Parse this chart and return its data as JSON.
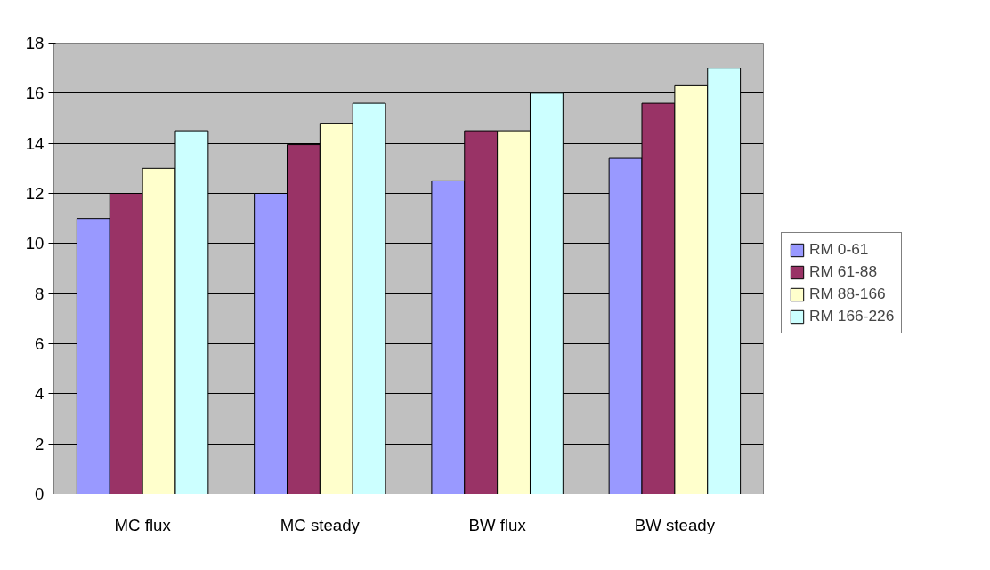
{
  "chart_data": {
    "type": "bar",
    "categories": [
      "MC flux",
      "MC steady",
      "BW flux",
      "BW steady"
    ],
    "series": [
      {
        "name": "RM 0-61",
        "color": "#9999ff",
        "values": [
          11,
          12,
          12.5,
          13.4
        ]
      },
      {
        "name": "RM 61-88",
        "color": "#993366",
        "values": [
          12,
          13.95,
          14.5,
          15.6
        ]
      },
      {
        "name": "RM 88-166",
        "color": "#ffffcc",
        "values": [
          13,
          14.8,
          14.5,
          16.3
        ]
      },
      {
        "name": "RM 166-226",
        "color": "#ccffff",
        "values": [
          14.5,
          15.6,
          16,
          17
        ]
      }
    ],
    "ylim": [
      0,
      18
    ],
    "yticks": [
      0,
      2,
      4,
      6,
      8,
      10,
      12,
      14,
      16,
      18
    ],
    "grid": "y",
    "legend": "right"
  }
}
